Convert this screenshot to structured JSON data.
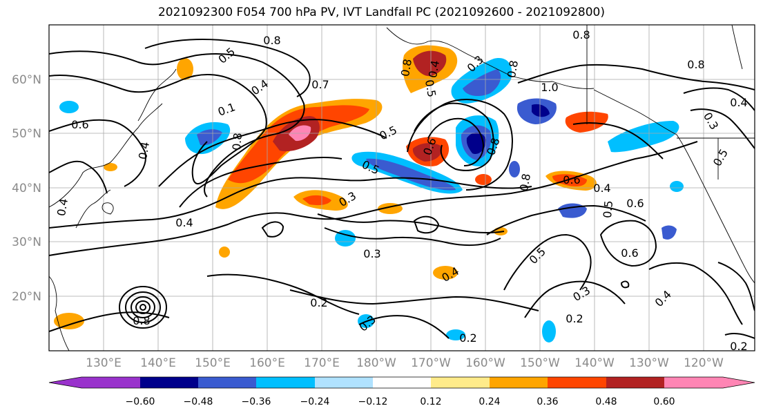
{
  "title": "2021092300 F054 700 hPa PV, IVT Landfall PC (2021092600 - 2021092800)",
  "lat_labels": [
    "60°N",
    "50°N",
    "40°N",
    "30°N",
    "20°N"
  ],
  "lon_labels": [
    "130°E",
    "140°E",
    "150°E",
    "160°E",
    "170°E",
    "180°W",
    "170°W",
    "160°W",
    "150°W",
    "140°W",
    "130°W",
    "120°W"
  ],
  "colorbar": {
    "ticks": [
      "−0.60",
      "−0.48",
      "−0.36",
      "−0.24",
      "−0.12",
      "0.12",
      "0.24",
      "0.36",
      "0.48",
      "0.60"
    ],
    "colors": [
      "#9932cc",
      "#00008b",
      "#3a5bd0",
      "#00bfff",
      "#b0e2ff",
      "#ffffff",
      "#ffeb8a",
      "#ffa500",
      "#ff4500",
      "#b22222",
      "#ff85b4"
    ]
  },
  "contour_labels": [
    {
      "t": "0.8"
    },
    {
      "t": "0.8"
    },
    {
      "t": "0.5"
    },
    {
      "t": "0.4"
    },
    {
      "t": "0.7"
    },
    {
      "t": "0.8"
    },
    {
      "t": "0.4"
    },
    {
      "t": "0.5"
    },
    {
      "t": "0.3"
    },
    {
      "t": "0.8"
    },
    {
      "t": "1.0"
    },
    {
      "t": "0.8"
    },
    {
      "t": "0.4"
    },
    {
      "t": "0.3"
    },
    {
      "t": "0.6"
    },
    {
      "t": "0.1"
    },
    {
      "t": "0.8"
    },
    {
      "t": "0.4"
    },
    {
      "t": "0.6"
    },
    {
      "t": "0.8"
    },
    {
      "t": "0.5"
    },
    {
      "t": "0.5"
    },
    {
      "t": "0.8"
    },
    {
      "t": "0.6"
    },
    {
      "t": "0.4"
    },
    {
      "t": "0.5"
    },
    {
      "t": "0.6"
    },
    {
      "t": "0.4"
    },
    {
      "t": "0.3"
    },
    {
      "t": "0.3"
    },
    {
      "t": "0.4"
    },
    {
      "t": "0.5"
    },
    {
      "t": "0.6"
    },
    {
      "t": "0.3"
    },
    {
      "t": "0.2"
    },
    {
      "t": "0.3"
    },
    {
      "t": "0.2"
    },
    {
      "t": "0.2"
    },
    {
      "t": "0.4"
    },
    {
      "t": "0.2"
    },
    {
      "t": "0.4"
    },
    {
      "t": "0.8"
    },
    {
      "t": "0.5"
    }
  ]
}
